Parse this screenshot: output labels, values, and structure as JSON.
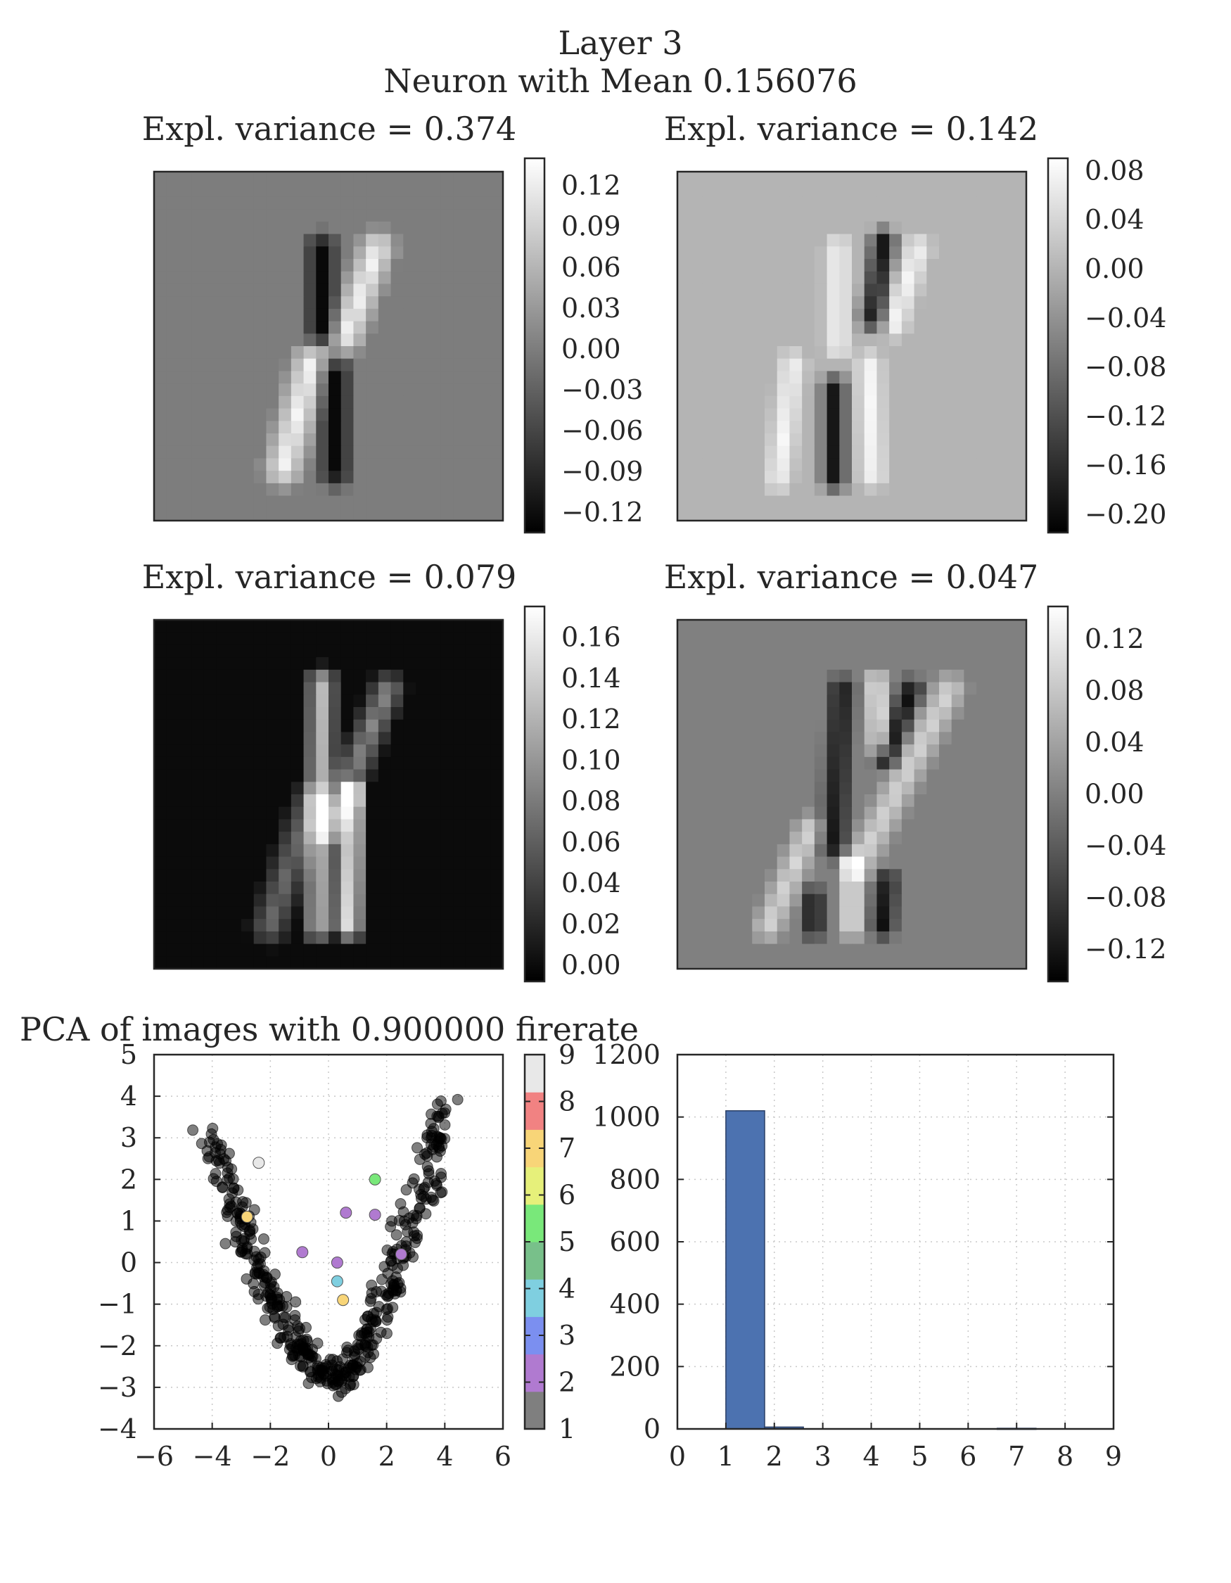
{
  "figure": {
    "title_line1": "Layer 3",
    "title_line2": "Neuron with Mean 0.156076"
  },
  "chart_data": [
    {
      "type": "heatmap",
      "title": "Expl. variance = 0.374",
      "colormap": "gray",
      "colorbar_ticks": [
        "0.12",
        "0.09",
        "0.06",
        "0.03",
        "0.00",
        "−0.03",
        "−0.06",
        "−0.09",
        "−0.12"
      ],
      "colorbar_range": [
        -0.135,
        0.14
      ],
      "background_value": 0.0,
      "strokes": [
        {
          "from": [
            0.48,
            0.22
          ],
          "to": [
            0.48,
            0.45
          ],
          "value": -0.13,
          "width": 0.09
        },
        {
          "from": [
            0.64,
            0.22
          ],
          "to": [
            0.55,
            0.47
          ],
          "value": 0.13,
          "width": 0.1
        },
        {
          "from": [
            0.52,
            0.58
          ],
          "to": [
            0.52,
            0.86
          ],
          "value": -0.13,
          "width": 0.09
        },
        {
          "from": [
            0.45,
            0.55
          ],
          "to": [
            0.37,
            0.85
          ],
          "value": 0.13,
          "width": 0.11
        }
      ]
    },
    {
      "type": "heatmap",
      "title": "Expl. variance = 0.142",
      "colormap": "gray",
      "colorbar_ticks": [
        "0.08",
        "0.04",
        "0.00",
        "−0.04",
        "−0.08",
        "−0.12",
        "−0.16",
        "−0.20"
      ],
      "colorbar_range": [
        -0.215,
        0.09
      ],
      "background_value": 0.0,
      "strokes": [
        {
          "from": [
            0.46,
            0.22
          ],
          "to": [
            0.46,
            0.5
          ],
          "value": 0.08,
          "width": 0.07
        },
        {
          "from": [
            0.59,
            0.2
          ],
          "to": [
            0.56,
            0.42
          ],
          "value": -0.2,
          "width": 0.07
        },
        {
          "from": [
            0.69,
            0.22
          ],
          "to": [
            0.62,
            0.44
          ],
          "value": 0.08,
          "width": 0.07
        },
        {
          "from": [
            0.33,
            0.55
          ],
          "to": [
            0.29,
            0.88
          ],
          "value": 0.08,
          "width": 0.07
        },
        {
          "from": [
            0.45,
            0.62
          ],
          "to": [
            0.45,
            0.88
          ],
          "value": -0.2,
          "width": 0.07
        },
        {
          "from": [
            0.55,
            0.55
          ],
          "to": [
            0.56,
            0.87
          ],
          "value": 0.08,
          "width": 0.07
        }
      ]
    },
    {
      "type": "heatmap",
      "title": "Expl. variance = 0.079",
      "colormap": "gray",
      "colorbar_ticks": [
        "0.16",
        "0.14",
        "0.12",
        "0.10",
        "0.08",
        "0.06",
        "0.04",
        "0.02",
        "0.00"
      ],
      "colorbar_range": [
        -0.008,
        0.175
      ],
      "background_value": 0.0,
      "strokes": [
        {
          "from": [
            0.48,
            0.18
          ],
          "to": [
            0.47,
            0.88
          ],
          "value": 0.13,
          "width": 0.08
        },
        {
          "from": [
            0.67,
            0.2
          ],
          "to": [
            0.5,
            0.6
          ],
          "value": 0.09,
          "width": 0.09
        },
        {
          "from": [
            0.57,
            0.5
          ],
          "to": [
            0.56,
            0.88
          ],
          "value": 0.17,
          "width": 0.07
        },
        {
          "from": [
            0.45,
            0.52
          ],
          "to": [
            0.33,
            0.88
          ],
          "value": 0.07,
          "width": 0.1
        }
      ]
    },
    {
      "type": "heatmap",
      "title": "Expl. variance = 0.047",
      "colormap": "gray",
      "colorbar_ticks": [
        "0.12",
        "0.08",
        "0.04",
        "0.00",
        "−0.04",
        "−0.08",
        "−0.12"
      ],
      "colorbar_range": [
        -0.145,
        0.145
      ],
      "background_value": 0.0,
      "strokes": [
        {
          "from": [
            0.47,
            0.2
          ],
          "to": [
            0.45,
            0.65
          ],
          "value": -0.13,
          "width": 0.07
        },
        {
          "from": [
            0.57,
            0.18
          ],
          "to": [
            0.58,
            0.35
          ],
          "value": 0.13,
          "width": 0.06
        },
        {
          "from": [
            0.67,
            0.2
          ],
          "to": [
            0.6,
            0.4
          ],
          "value": -0.13,
          "width": 0.06
        },
        {
          "from": [
            0.78,
            0.2
          ],
          "to": [
            0.52,
            0.7
          ],
          "value": 0.1,
          "width": 0.09
        },
        {
          "from": [
            0.38,
            0.6
          ],
          "to": [
            0.26,
            0.88
          ],
          "value": 0.1,
          "width": 0.08
        },
        {
          "from": [
            0.39,
            0.8
          ],
          "to": [
            0.39,
            0.88
          ],
          "value": -0.13,
          "width": 0.06
        },
        {
          "from": [
            0.5,
            0.7
          ],
          "to": [
            0.5,
            0.88
          ],
          "value": 0.13,
          "width": 0.06
        },
        {
          "from": [
            0.6,
            0.75
          ],
          "to": [
            0.59,
            0.88
          ],
          "value": -0.13,
          "width": 0.06
        }
      ]
    },
    {
      "type": "scatter",
      "title": "PCA of images with 0.900000 firerate",
      "xlim": [
        -6,
        6
      ],
      "ylim": [
        -4,
        5
      ],
      "x_ticks": [
        -6,
        -4,
        -2,
        0,
        2,
        4,
        6
      ],
      "y_ticks": [
        -4,
        -3,
        -2,
        -1,
        0,
        1,
        2,
        3,
        4,
        5
      ],
      "grid": true,
      "colorbar_ticks": [
        "1",
        "2",
        "3",
        "4",
        "5",
        "6",
        "7",
        "8",
        "9"
      ],
      "colorbar_colors": [
        "#7f7f7f",
        "#b07ad0",
        "#7b8ff0",
        "#7fcfe0",
        "#78c08a",
        "#79e87a",
        "#e6f07a",
        "#f8d578",
        "#f18282",
        "#e8e8e8"
      ],
      "cluster": {
        "shape": "U-shaped band",
        "center_x": 0.2,
        "bottom_y": -2.8,
        "left_top": [
          -4.0,
          2.9
        ],
        "right_top": [
          3.5,
          4.0
        ],
        "count": 460,
        "color": "#000000",
        "opacity": 0.5
      },
      "highlighted_points": [
        {
          "x": -2.4,
          "y": 2.4,
          "color": "#e8e8e8"
        },
        {
          "x": 1.6,
          "y": 2.0,
          "color": "#79e87a"
        },
        {
          "x": 0.6,
          "y": 1.2,
          "color": "#b07ad0"
        },
        {
          "x": 1.6,
          "y": 1.15,
          "color": "#b07ad0"
        },
        {
          "x": -0.9,
          "y": 0.25,
          "color": "#b07ad0"
        },
        {
          "x": 0.3,
          "y": 0.0,
          "color": "#b07ad0"
        },
        {
          "x": 2.5,
          "y": 0.2,
          "color": "#b07ad0"
        },
        {
          "x": 0.3,
          "y": -0.45,
          "color": "#7fcfe0"
        },
        {
          "x": 0.5,
          "y": -0.9,
          "color": "#f8d578"
        },
        {
          "x": -2.8,
          "y": 1.1,
          "color": "#f8d578"
        }
      ]
    },
    {
      "type": "bar",
      "xlim": [
        0,
        9
      ],
      "ylim": [
        0,
        1200
      ],
      "x_ticks": [
        0,
        1,
        2,
        3,
        4,
        5,
        6,
        7,
        8,
        9
      ],
      "y_ticks": [
        0,
        200,
        400,
        600,
        800,
        1000,
        1200
      ],
      "grid": true,
      "bar_color": "#4c72b0",
      "bins": [
        {
          "start": 1.0,
          "end": 1.8,
          "value": 1020
        },
        {
          "start": 1.8,
          "end": 2.6,
          "value": 6
        },
        {
          "start": 6.6,
          "end": 7.4,
          "value": 2
        }
      ]
    }
  ]
}
